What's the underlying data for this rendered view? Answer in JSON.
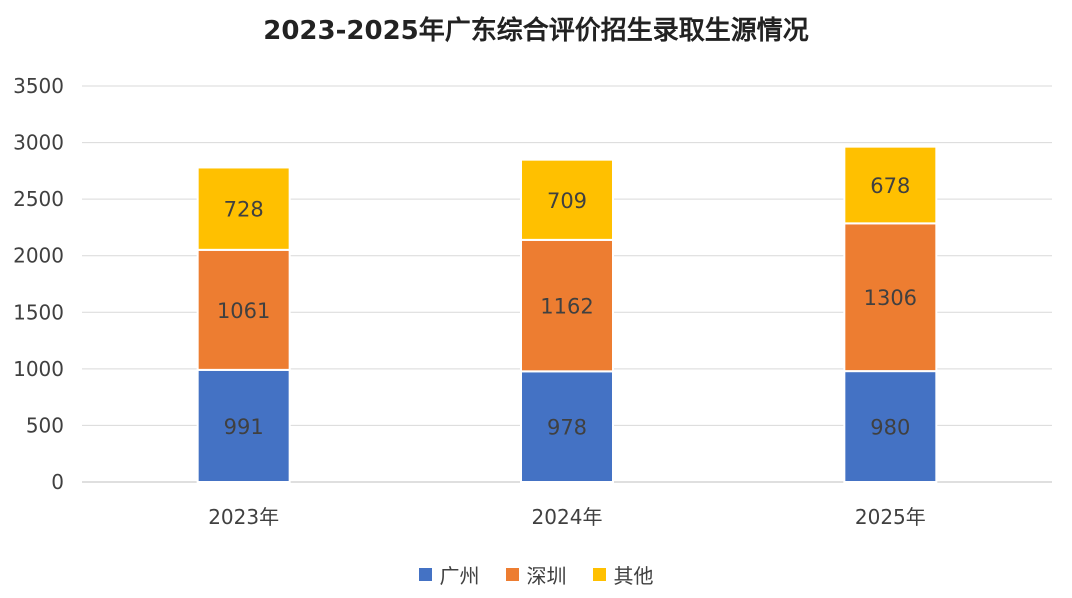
{
  "chart_data": {
    "type": "bar",
    "stacked": true,
    "title": "2023-2025年广东综合评价招生录取生源情况",
    "categories": [
      "2023年",
      "2024年",
      "2025年"
    ],
    "series": [
      {
        "name": "广州",
        "values": [
          991,
          978,
          980
        ],
        "color": "#4472c4"
      },
      {
        "name": "深圳",
        "values": [
          1061,
          1162,
          1306
        ],
        "color": "#ed7d31"
      },
      {
        "name": "其他",
        "values": [
          728,
          709,
          678
        ],
        "color": "#ffc000"
      }
    ],
    "ylim": [
      0,
      3500
    ],
    "yticks": [
      0,
      500,
      1000,
      1500,
      2000,
      2500,
      3000,
      3500
    ],
    "grid": true,
    "legend_position": "bottom",
    "xlabel": "",
    "ylabel": ""
  }
}
